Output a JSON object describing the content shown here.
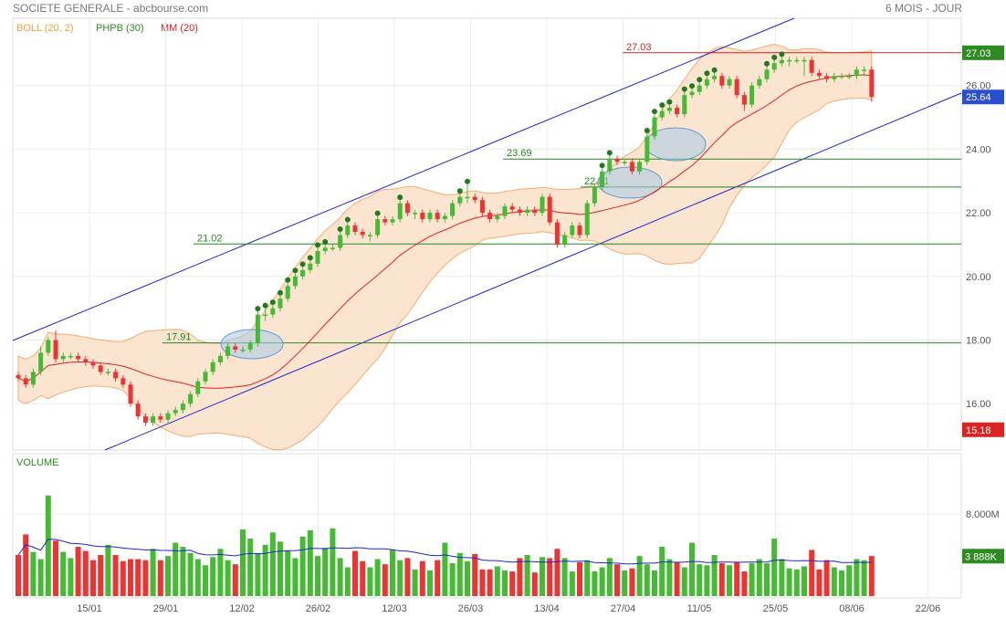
{
  "header": {
    "title": "SOCIETE GENERALE - abcbourse.com",
    "period": "6 MOIS - JOUR"
  },
  "legend": [
    {
      "label": "BOLL (20, 2)",
      "color": "#f0a040"
    },
    {
      "label": "PHPB (30)",
      "color": "#2e8b22"
    },
    {
      "label": "MM (20)",
      "color": "#dd2222"
    }
  ],
  "colors": {
    "up": "#44bb33",
    "down": "#ee3333",
    "channel": "#2222cc",
    "support": "#228822",
    "resistance": "#cc2222",
    "boll_fill": "#fbe3cc",
    "boll_line": "#f4a460",
    "mm": "#dd2222",
    "volume_avg": "#2222cc",
    "ellipse": "#a9cbe8"
  },
  "price_axis": {
    "ticks": [
      "26.00",
      "24.00",
      "22.00",
      "20.00",
      "18.00",
      "16.00"
    ],
    "tags": [
      {
        "label": "27.03",
        "value": 27.03,
        "color": "#2e8b22"
      },
      {
        "label": "25.64",
        "value": 25.64,
        "color": "#2a4fcc"
      },
      {
        "label": "15.18",
        "value": 15.18,
        "color": "#dd2222"
      }
    ]
  },
  "volume_panel": {
    "title": "VOLUME",
    "ticks": [
      "8.000M"
    ],
    "tags": [
      {
        "label": "3 888K",
        "value": 3.888,
        "color": "#2e8b22"
      }
    ]
  },
  "x_axis": {
    "labels": [
      "15/01",
      "29/01",
      "12/02",
      "26/02",
      "12/03",
      "26/03",
      "13/04",
      "27/04",
      "11/05",
      "25/05",
      "08/06",
      "22/06"
    ]
  },
  "annotations": {
    "horizontal_levels": [
      {
        "label": "17.91",
        "value": 17.91,
        "color": "#228822"
      },
      {
        "label": "21.02",
        "value": 21.02,
        "color": "#228822"
      },
      {
        "label": "22.81",
        "value": 22.81,
        "color": "#228822"
      },
      {
        "label": "23.69",
        "value": 23.69,
        "color": "#228822"
      },
      {
        "label": "27.03",
        "value": 27.03,
        "color": "#cc2222"
      }
    ]
  },
  "chart_data": [
    {
      "type": "candlestick",
      "series_name": "SOCIETE GENERALE",
      "ylim": [
        15.0,
        27.6
      ],
      "grid": true,
      "x": [
        "2015-01-05",
        "2015-01-06",
        "2015-01-07",
        "2015-01-08",
        "2015-01-09",
        "2015-01-12",
        "2015-01-13",
        "2015-01-14",
        "2015-01-15",
        "2015-01-16",
        "2015-01-19",
        "2015-01-20",
        "2015-01-21",
        "2015-01-22",
        "2015-01-23",
        "2015-01-26",
        "2015-01-27",
        "2015-01-28",
        "2015-01-29",
        "2015-01-30",
        "2015-02-02",
        "2015-02-03",
        "2015-02-04",
        "2015-02-05",
        "2015-02-06",
        "2015-02-09",
        "2015-02-10",
        "2015-02-11",
        "2015-02-12",
        "2015-02-13",
        "2015-02-16",
        "2015-02-17",
        "2015-02-18",
        "2015-02-19",
        "2015-02-20",
        "2015-02-23",
        "2015-02-24",
        "2015-02-25",
        "2015-02-26",
        "2015-02-27",
        "2015-03-02",
        "2015-03-03",
        "2015-03-04",
        "2015-03-05",
        "2015-03-06",
        "2015-03-09",
        "2015-03-10",
        "2015-03-11",
        "2015-03-12",
        "2015-03-13",
        "2015-03-16",
        "2015-03-17",
        "2015-03-18",
        "2015-03-19",
        "2015-03-20",
        "2015-03-23",
        "2015-03-24",
        "2015-03-25",
        "2015-03-26",
        "2015-03-27",
        "2015-03-30",
        "2015-03-31",
        "2015-04-01",
        "2015-04-02",
        "2015-04-07",
        "2015-04-08",
        "2015-04-09",
        "2015-04-10",
        "2015-04-13",
        "2015-04-14",
        "2015-04-15",
        "2015-04-16",
        "2015-04-17",
        "2015-04-20",
        "2015-04-21",
        "2015-04-22",
        "2015-04-23",
        "2015-04-24",
        "2015-04-27",
        "2015-04-28",
        "2015-04-29",
        "2015-04-30",
        "2015-05-04",
        "2015-05-05",
        "2015-05-06",
        "2015-05-07",
        "2015-05-08",
        "2015-05-11",
        "2015-05-12",
        "2015-05-13",
        "2015-05-14",
        "2015-05-15",
        "2015-05-18",
        "2015-05-19",
        "2015-05-20",
        "2015-05-21",
        "2015-05-22",
        "2015-05-25",
        "2015-05-26",
        "2015-05-27",
        "2015-05-28",
        "2015-05-29",
        "2015-06-01",
        "2015-06-02",
        "2015-06-03",
        "2015-06-04",
        "2015-06-05",
        "2015-06-08",
        "2015-06-09",
        "2015-06-10",
        "2015-06-11",
        "2015-06-12",
        "2015-06-15",
        "2015-06-16",
        "2015-06-17"
      ],
      "open": [
        16.9,
        16.8,
        16.6,
        17.0,
        17.6,
        18.0,
        17.4,
        17.5,
        17.5,
        17.4,
        17.3,
        17.2,
        17.0,
        17.0,
        16.8,
        16.6,
        16.0,
        15.6,
        15.4,
        15.6,
        15.5,
        15.7,
        15.8,
        16.0,
        16.3,
        16.7,
        17.0,
        17.3,
        17.5,
        17.8,
        17.7,
        17.7,
        17.9,
        18.8,
        18.8,
        19.0,
        19.3,
        19.7,
        20.0,
        20.2,
        20.4,
        20.8,
        20.9,
        20.9,
        21.3,
        21.6,
        21.4,
        21.3,
        21.3,
        21.8,
        21.7,
        21.8,
        22.3,
        22.0,
        22.0,
        21.8,
        22.0,
        21.8,
        21.9,
        22.3,
        22.5,
        22.5,
        22.4,
        22.0,
        21.8,
        21.9,
        22.2,
        22.1,
        22.0,
        22.1,
        22.0,
        22.5,
        21.7,
        21.0,
        21.3,
        21.6,
        21.3,
        22.3,
        22.8,
        23.3,
        23.7,
        23.6,
        23.6,
        23.3,
        23.6,
        24.4,
        25.0,
        25.2,
        25.3,
        25.1,
        25.7,
        25.8,
        26.0,
        26.2,
        26.3,
        26.0,
        26.2,
        25.7,
        25.4,
        26.0,
        26.2,
        26.5,
        26.7,
        26.8,
        26.8,
        26.8,
        26.8,
        26.4,
        26.3,
        26.2,
        26.3,
        26.3,
        26.3,
        26.5,
        26.5
      ],
      "close": [
        16.8,
        16.6,
        17.0,
        17.6,
        18.0,
        17.4,
        17.5,
        17.5,
        17.4,
        17.3,
        17.2,
        17.0,
        17.0,
        16.8,
        16.6,
        16.0,
        15.6,
        15.4,
        15.6,
        15.5,
        15.7,
        15.8,
        16.0,
        16.3,
        16.7,
        17.0,
        17.3,
        17.5,
        17.8,
        17.7,
        17.7,
        17.9,
        18.8,
        18.8,
        19.0,
        19.3,
        19.7,
        20.0,
        20.2,
        20.4,
        20.8,
        20.9,
        20.9,
        21.3,
        21.6,
        21.4,
        21.3,
        21.3,
        21.8,
        21.7,
        21.8,
        22.3,
        22.0,
        22.0,
        21.8,
        22.0,
        21.8,
        21.9,
        22.3,
        22.5,
        22.5,
        22.4,
        22.0,
        21.8,
        21.9,
        22.2,
        22.1,
        22.0,
        22.1,
        22.0,
        22.5,
        21.7,
        21.0,
        21.3,
        21.6,
        21.3,
        22.3,
        22.8,
        23.3,
        23.7,
        23.6,
        23.6,
        23.3,
        23.6,
        24.4,
        25.0,
        25.2,
        25.3,
        25.1,
        25.7,
        25.8,
        26.0,
        26.2,
        26.3,
        26.0,
        26.2,
        25.7,
        25.4,
        26.0,
        26.2,
        26.5,
        26.7,
        26.8,
        26.8,
        26.8,
        26.8,
        26.4,
        26.3,
        26.2,
        26.3,
        26.3,
        26.3,
        26.5,
        26.5,
        25.64
      ],
      "high": [
        17.0,
        16.9,
        17.1,
        17.8,
        18.1,
        18.3,
        17.6,
        17.6,
        17.6,
        17.5,
        17.4,
        17.3,
        17.1,
        17.1,
        16.9,
        16.7,
        16.1,
        15.7,
        15.7,
        15.7,
        15.8,
        15.9,
        16.1,
        16.4,
        16.8,
        17.1,
        17.4,
        17.6,
        17.9,
        17.9,
        17.8,
        18.0,
        18.9,
        19.0,
        19.1,
        19.4,
        19.8,
        20.1,
        20.3,
        20.5,
        20.9,
        21.0,
        21.0,
        21.4,
        21.7,
        21.7,
        21.5,
        21.4,
        21.9,
        21.9,
        21.9,
        22.4,
        22.4,
        22.1,
        22.1,
        22.1,
        22.1,
        22.0,
        22.4,
        22.6,
        22.9,
        22.6,
        22.5,
        22.1,
        22.0,
        22.3,
        22.3,
        22.2,
        22.2,
        22.2,
        22.6,
        22.6,
        21.8,
        21.4,
        21.7,
        21.7,
        22.4,
        22.9,
        23.4,
        23.8,
        23.8,
        23.7,
        23.7,
        23.7,
        24.5,
        25.1,
        25.3,
        25.4,
        25.4,
        25.8,
        25.9,
        26.1,
        26.3,
        26.4,
        26.4,
        26.3,
        26.3,
        25.8,
        26.1,
        26.3,
        26.6,
        26.8,
        26.9,
        26.9,
        26.9,
        26.9,
        26.9,
        26.5,
        26.4,
        26.4,
        26.4,
        26.4,
        26.6,
        26.6,
        26.6
      ],
      "low": [
        16.7,
        16.5,
        16.5,
        16.9,
        17.5,
        17.3,
        17.3,
        17.4,
        17.3,
        17.2,
        17.1,
        16.9,
        16.9,
        16.7,
        16.5,
        15.9,
        15.5,
        15.3,
        15.3,
        15.4,
        15.4,
        15.6,
        15.7,
        15.9,
        16.2,
        16.6,
        16.9,
        17.2,
        17.4,
        17.6,
        17.6,
        17.6,
        17.8,
        18.6,
        18.7,
        18.9,
        19.2,
        19.6,
        19.9,
        20.1,
        20.3,
        20.7,
        20.8,
        20.8,
        21.2,
        21.3,
        21.2,
        21.1,
        21.2,
        21.6,
        21.6,
        21.7,
        21.9,
        21.8,
        21.7,
        21.7,
        21.7,
        21.7,
        21.8,
        22.2,
        22.3,
        22.3,
        21.9,
        21.7,
        21.7,
        21.8,
        22.0,
        21.9,
        21.9,
        21.9,
        21.9,
        21.6,
        20.9,
        20.9,
        21.2,
        21.2,
        21.2,
        22.2,
        22.7,
        23.2,
        23.5,
        23.5,
        23.2,
        23.2,
        23.5,
        24.3,
        24.9,
        25.1,
        25.0,
        25.0,
        25.6,
        25.7,
        25.9,
        26.1,
        25.9,
        25.9,
        25.6,
        25.2,
        25.3,
        25.9,
        26.1,
        26.4,
        26.6,
        26.6,
        26.7,
        26.3,
        26.3,
        26.2,
        26.1,
        26.1,
        26.2,
        26.2,
        26.2,
        26.3,
        25.5
      ]
    },
    {
      "type": "bar",
      "series_name": "VOLUME",
      "unit": "M",
      "ylim": [
        0,
        10
      ],
      "grid": true,
      "values": [
        4.0,
        6.0,
        4.3,
        3.6,
        9.8,
        5.4,
        4.3,
        3.7,
        4.8,
        4.4,
        3.5,
        4.0,
        5.0,
        4.0,
        3.4,
        3.6,
        3.6,
        3.5,
        4.6,
        3.5,
        3.9,
        5.2,
        4.8,
        4.2,
        3.6,
        3.0,
        3.8,
        4.6,
        3.5,
        3.1,
        6.5,
        5.6,
        4.2,
        5.0,
        6.2,
        5.3,
        4.4,
        3.7,
        5.8,
        6.4,
        3.9,
        4.7,
        6.6,
        3.7,
        2.8,
        4.4,
        3.4,
        2.8,
        3.6,
        3.1,
        4.5,
        3.5,
        3.7,
        2.6,
        3.4,
        2.5,
        3.5,
        5.2,
        3.2,
        4.2,
        3.4,
        4.1,
        2.6,
        2.6,
        2.9,
        2.5,
        2.4,
        3.7,
        4.0,
        2.3,
        3.8,
        3.7,
        4.6,
        3.7,
        2.4,
        3.3,
        3.5,
        2.4,
        2.8,
        3.7,
        3.1,
        2.5,
        2.7,
        3.9,
        3.1,
        2.5,
        4.8,
        3.6,
        3.3,
        2.8,
        5.2,
        3.1,
        3.0,
        4.0,
        3.2,
        3.0,
        3.3,
        2.4,
        3.2,
        3.6,
        3.2,
        5.6,
        3.6,
        2.7,
        2.6,
        2.9,
        4.5,
        2.6,
        3.5,
        2.8,
        2.5,
        3.0,
        3.6,
        3.5,
        3.9
      ]
    }
  ]
}
